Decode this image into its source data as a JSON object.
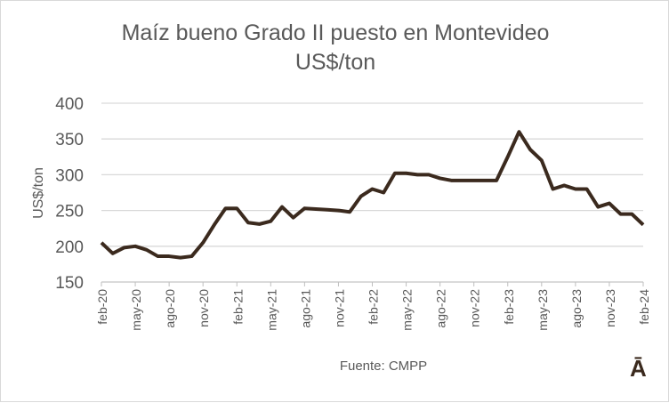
{
  "chart_data": {
    "type": "line",
    "title": "Maíz bueno Grado II puesto en Montevideo",
    "subtitle": "US$/ton",
    "ylabel": "US$/ton",
    "xlabel": "",
    "ylim": [
      150,
      400
    ],
    "yticks": [
      "150",
      "200",
      "250",
      "300",
      "350",
      "400"
    ],
    "xtick_labels": [
      "feb-20",
      "may-20",
      "ago-20",
      "nov-20",
      "feb-21",
      "may-21",
      "ago-21",
      "nov-21",
      "feb-22",
      "may-22",
      "ago-22",
      "nov-22",
      "feb-23",
      "may-23",
      "ago-23",
      "nov-23",
      "feb-24"
    ],
    "grid": true,
    "series": [
      {
        "name": "Maíz",
        "color": "#3b2a1e",
        "values": [
          205,
          190,
          198,
          200,
          195,
          186,
          186,
          184,
          186,
          205,
          230,
          253,
          253,
          233,
          231,
          235,
          255,
          240,
          253,
          252,
          251,
          250,
          248,
          270,
          280,
          275,
          302,
          302,
          300,
          300,
          295,
          292,
          292,
          292,
          292,
          292,
          325,
          360,
          335,
          320,
          280,
          285,
          280,
          280,
          255,
          260,
          245,
          245,
          230
        ]
      }
    ]
  },
  "source": "Fuente: CMPP",
  "logo": "Ā"
}
